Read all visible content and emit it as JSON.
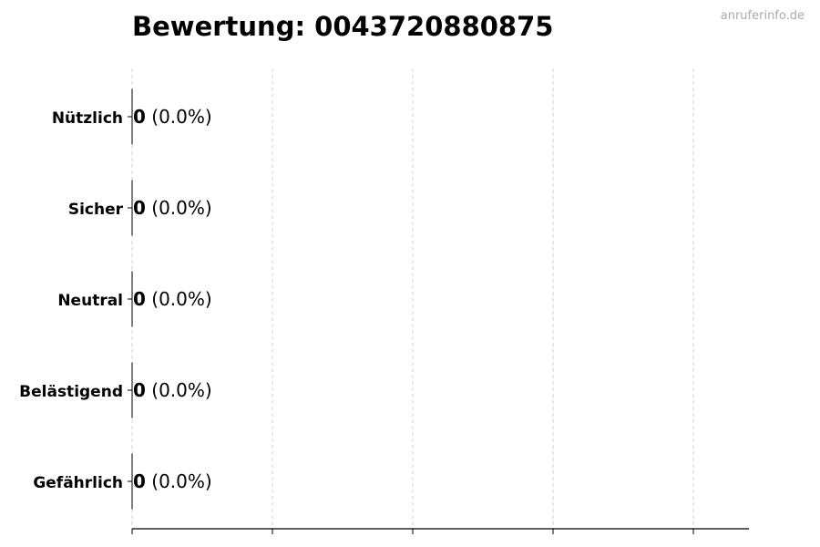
{
  "chart_data": {
    "type": "bar",
    "orientation": "horizontal",
    "title": "Bewertung: 0043720880875",
    "watermark": "anruferinfo.de",
    "categories": [
      "Nützlich",
      "Sicher",
      "Neutral",
      "Belästigend",
      "Gefährlich"
    ],
    "values": [
      0,
      0,
      0,
      0,
      0
    ],
    "percent_labels": [
      "(0.0%)",
      "(0.0%)",
      "(0.0%)",
      "(0.0%)",
      "(0.0%)"
    ],
    "value_labels": [
      "0",
      "0",
      "0",
      "0",
      "0"
    ],
    "xlabel": "",
    "ylabel": "",
    "x_tick_labels_shown": false,
    "grid": "x dashed",
    "colors": {
      "bar_edge": "#000000",
      "grid": "#cccccc"
    }
  }
}
